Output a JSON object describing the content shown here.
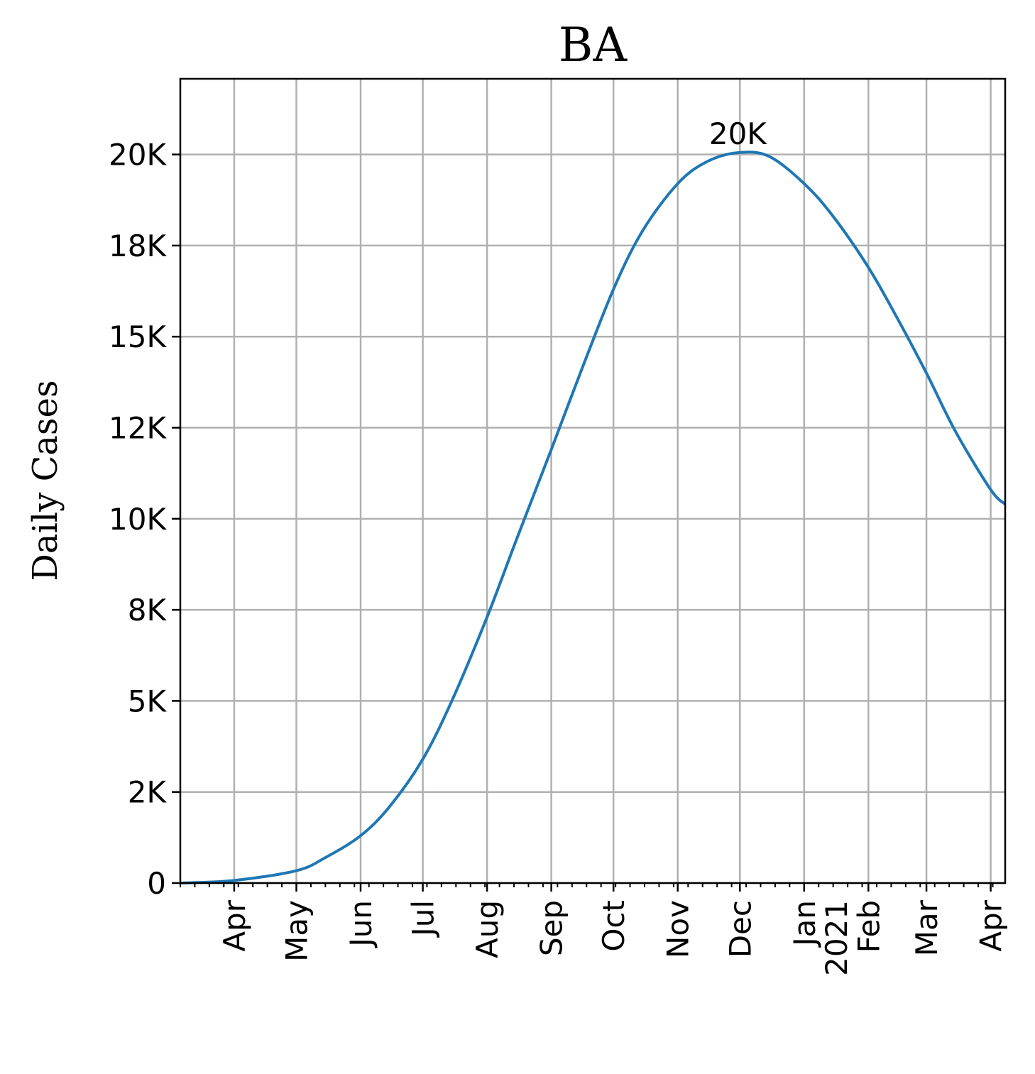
{
  "chart_data": {
    "type": "line",
    "title": "BA",
    "xlabel": "",
    "ylabel": "Daily Cases",
    "grid": true,
    "x_range": [
      "2020-03-06",
      "2021-04-08"
    ],
    "y_range": [
      0,
      22078
    ],
    "y_ticks": [
      {
        "value": 0,
        "label": "0"
      },
      {
        "value": 2500,
        "label": "2K"
      },
      {
        "value": 5000,
        "label": "5K"
      },
      {
        "value": 7500,
        "label": "8K"
      },
      {
        "value": 10000,
        "label": "10K"
      },
      {
        "value": 12500,
        "label": "12K"
      },
      {
        "value": 15000,
        "label": "15K"
      },
      {
        "value": 17500,
        "label": "18K"
      },
      {
        "value": 20000,
        "label": "20K"
      }
    ],
    "x_ticks": [
      {
        "date": "2020-04-01",
        "label": "Apr"
      },
      {
        "date": "2020-05-01",
        "label": "May"
      },
      {
        "date": "2020-06-01",
        "label": "Jun"
      },
      {
        "date": "2020-07-01",
        "label": "Jul"
      },
      {
        "date": "2020-08-01",
        "label": "Aug"
      },
      {
        "date": "2020-09-01",
        "label": "Sep"
      },
      {
        "date": "2020-10-01",
        "label": "Oct"
      },
      {
        "date": "2020-11-01",
        "label": "Nov"
      },
      {
        "date": "2020-12-01",
        "label": "Dec"
      },
      {
        "date": "2021-01-01",
        "label": "Jan\n2021"
      },
      {
        "date": "2021-02-01",
        "label": "Feb"
      },
      {
        "date": "2021-03-01",
        "label": "Mar"
      },
      {
        "date": "2021-04-01",
        "label": "Apr"
      }
    ],
    "series": [
      {
        "color": "#1f77b4",
        "points": [
          {
            "x": "2020-03-06",
            "y": 0
          },
          {
            "x": "2020-04-01",
            "y": 70
          },
          {
            "x": "2020-05-01",
            "y": 340
          },
          {
            "x": "2020-05-15",
            "y": 700
          },
          {
            "x": "2020-06-01",
            "y": 1300
          },
          {
            "x": "2020-06-15",
            "y": 2100
          },
          {
            "x": "2020-07-01",
            "y": 3400
          },
          {
            "x": "2020-07-15",
            "y": 5000
          },
          {
            "x": "2020-08-01",
            "y": 7300
          },
          {
            "x": "2020-08-15",
            "y": 9400
          },
          {
            "x": "2020-09-01",
            "y": 11900
          },
          {
            "x": "2020-09-15",
            "y": 14000
          },
          {
            "x": "2020-10-01",
            "y": 16300
          },
          {
            "x": "2020-10-15",
            "y": 17900
          },
          {
            "x": "2020-11-01",
            "y": 19200
          },
          {
            "x": "2020-11-15",
            "y": 19800
          },
          {
            "x": "2020-11-30",
            "y": 20050
          },
          {
            "x": "2020-12-15",
            "y": 19950
          },
          {
            "x": "2021-01-01",
            "y": 19200
          },
          {
            "x": "2021-01-15",
            "y": 18300
          },
          {
            "x": "2021-02-01",
            "y": 16900
          },
          {
            "x": "2021-02-15",
            "y": 15500
          },
          {
            "x": "2021-03-01",
            "y": 14000
          },
          {
            "x": "2021-03-15",
            "y": 12400
          },
          {
            "x": "2021-04-01",
            "y": 10800
          },
          {
            "x": "2021-04-08",
            "y": 10400
          }
        ]
      }
    ],
    "annotations": [
      {
        "x": "2020-11-30",
        "y": 20050,
        "text": "20K"
      }
    ]
  }
}
